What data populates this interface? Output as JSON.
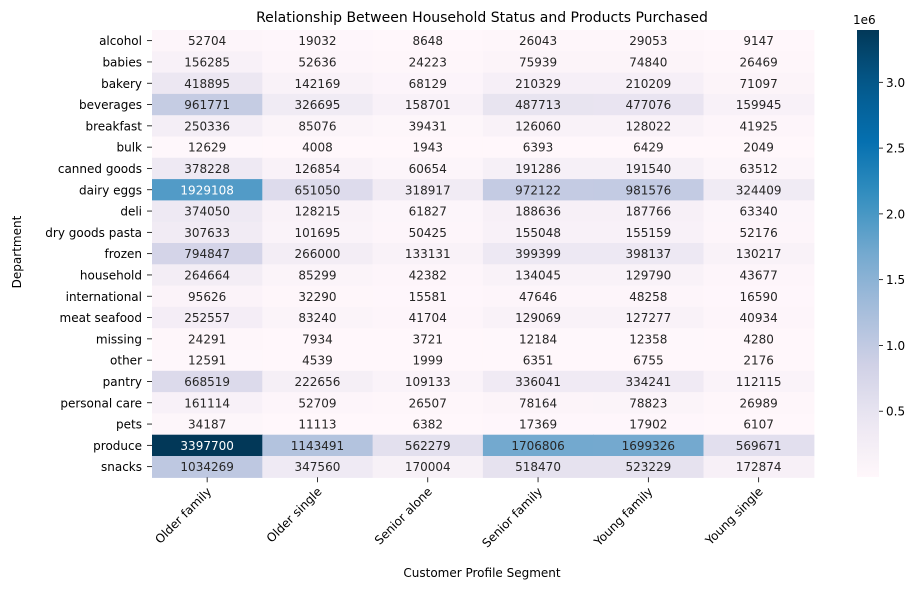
{
  "chart_data": {
    "type": "heatmap",
    "title": "Relationship Between Household Status and Products Purchased",
    "xlabel": "Customer Profile Segment",
    "ylabel": "Department",
    "x_categories": [
      "Older family",
      "Older single",
      "Senior alone",
      "Senior family",
      "Young family",
      "Young single"
    ],
    "y_categories": [
      "alcohol",
      "babies",
      "bakery",
      "beverages",
      "breakfast",
      "bulk",
      "canned goods",
      "dairy eggs",
      "deli",
      "dry goods pasta",
      "frozen",
      "household",
      "international",
      "meat seafood",
      "missing",
      "other",
      "pantry",
      "personal care",
      "pets",
      "produce",
      "snacks"
    ],
    "values": [
      [
        52704,
        19032,
        8648,
        26043,
        29053,
        9147
      ],
      [
        156285,
        52636,
        24223,
        75939,
        74840,
        26469
      ],
      [
        418895,
        142169,
        68129,
        210329,
        210209,
        71097
      ],
      [
        961771,
        326695,
        158701,
        487713,
        477076,
        159945
      ],
      [
        250336,
        85076,
        39431,
        126060,
        128022,
        41925
      ],
      [
        12629,
        4008,
        1943,
        6393,
        6429,
        2049
      ],
      [
        378228,
        126854,
        60654,
        191286,
        191540,
        63512
      ],
      [
        1929108,
        651050,
        318917,
        972122,
        981576,
        324409
      ],
      [
        374050,
        128215,
        61827,
        188636,
        187766,
        63340
      ],
      [
        307633,
        101695,
        50425,
        155048,
        155159,
        52176
      ],
      [
        794847,
        266000,
        133131,
        399399,
        398137,
        130217
      ],
      [
        264664,
        85299,
        42382,
        134045,
        129790,
        43677
      ],
      [
        95626,
        32290,
        15581,
        47646,
        48258,
        16590
      ],
      [
        252557,
        83240,
        41704,
        129069,
        127277,
        40934
      ],
      [
        24291,
        7934,
        3721,
        12184,
        12358,
        4280
      ],
      [
        12591,
        4539,
        1999,
        6351,
        6755,
        2176
      ],
      [
        668519,
        222656,
        109133,
        336041,
        334241,
        112115
      ],
      [
        161114,
        52709,
        26507,
        78164,
        78823,
        26989
      ],
      [
        34187,
        11113,
        6382,
        17369,
        17902,
        6107
      ],
      [
        3397700,
        1143491,
        562279,
        1706806,
        1699326,
        569671
      ],
      [
        1034269,
        347560,
        170004,
        518470,
        523229,
        172874
      ]
    ],
    "colormap": "PuBu",
    "colorbar": {
      "ticks": [
        "0.5",
        "1.0",
        "1.5",
        "2.0",
        "2.5",
        "3.0"
      ],
      "tick_values": [
        500000,
        1000000,
        1500000,
        2000000,
        2500000,
        3000000
      ],
      "offset_label": "1e6",
      "vmin": 0,
      "vmax": 3397700
    },
    "grid": false
  }
}
